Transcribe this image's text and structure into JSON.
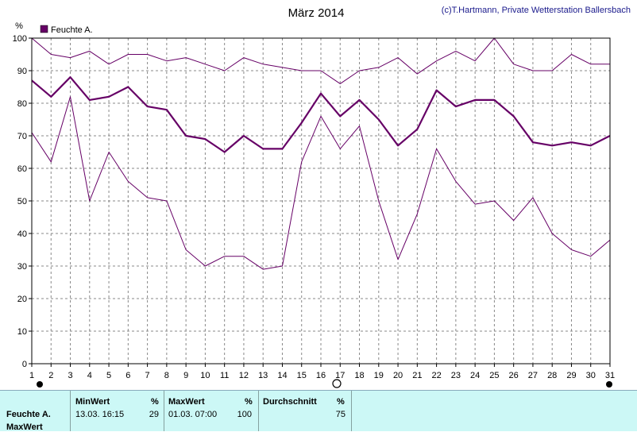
{
  "title": "März 2014",
  "copyright": "(c)T.Hartmann, Private Wetterstation Ballersbach",
  "colors": {
    "series": "#660066",
    "grid": "#888888",
    "stats_bg": "#ccf8f6"
  },
  "chart_data": {
    "type": "line",
    "title": "März 2014",
    "ylabel": "%",
    "xlabel": "",
    "ylim": [
      0,
      100
    ],
    "yticks": [
      0,
      10,
      20,
      30,
      40,
      50,
      60,
      70,
      80,
      90,
      100
    ],
    "xlim": [
      1,
      31
    ],
    "x": [
      1,
      2,
      3,
      4,
      5,
      6,
      7,
      8,
      9,
      10,
      11,
      12,
      13,
      14,
      15,
      16,
      17,
      18,
      19,
      20,
      21,
      22,
      23,
      24,
      25,
      26,
      27,
      28,
      29,
      30,
      31
    ],
    "grid": true,
    "legend": {
      "position": "top-left",
      "label": "Feuchte A."
    },
    "series": [
      {
        "name": "Feuchte A.",
        "role": "max",
        "values": [
          100,
          95,
          94,
          96,
          92,
          95,
          95,
          93,
          94,
          92,
          90,
          94,
          92,
          91,
          90,
          90,
          86,
          90,
          91,
          94,
          89,
          93,
          96,
          93,
          100,
          92,
          90,
          90,
          95,
          92,
          92
        ]
      },
      {
        "name": "Feuchte A.",
        "role": "mean",
        "values": [
          87,
          82,
          88,
          81,
          82,
          85,
          79,
          78,
          70,
          69,
          65,
          70,
          66,
          66,
          74,
          83,
          76,
          81,
          75,
          67,
          72,
          84,
          79,
          81,
          81,
          76,
          68,
          67,
          68,
          67,
          70
        ]
      },
      {
        "name": "Feuchte A.",
        "role": "min",
        "values": [
          71,
          62,
          82,
          50,
          65,
          56,
          51,
          50,
          35,
          30,
          33,
          33,
          29,
          30,
          62,
          76,
          66,
          73,
          50,
          32,
          46,
          66,
          56,
          49,
          50,
          44,
          51,
          40,
          35,
          33,
          38
        ]
      }
    ]
  },
  "stats": {
    "row_label": "Feuchte A.",
    "row_label2": "MaxWert",
    "min": {
      "header": "MinWert",
      "unit": "%",
      "datetime": "13.03.  16:15",
      "value": "29"
    },
    "max": {
      "header": "MaxWert",
      "unit": "%",
      "datetime": "01.03.  07:00",
      "value": "100"
    },
    "avg": {
      "header": "Durchschnitt",
      "unit": "%",
      "value": "75"
    }
  }
}
